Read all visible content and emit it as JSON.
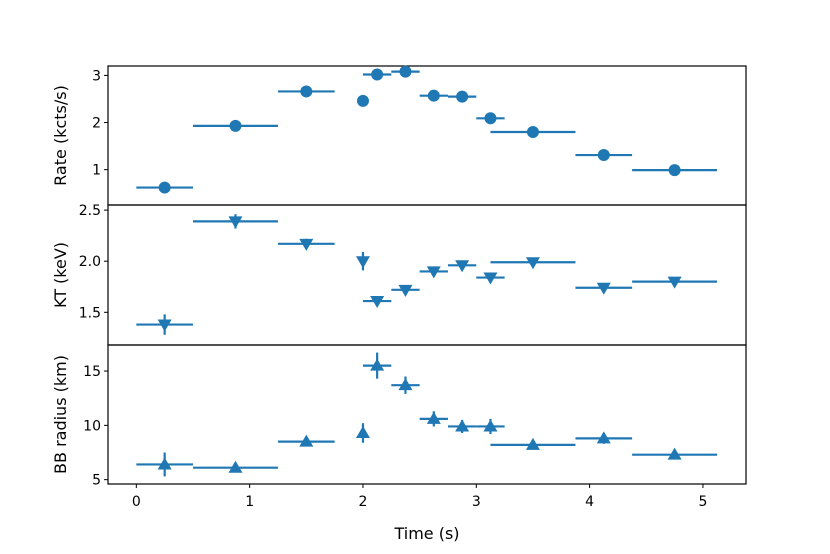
{
  "chart_data": [
    {
      "type": "scatter",
      "ylabel": "Rate (kcts/s)",
      "ylim": [
        0.25,
        3.2
      ],
      "yticks": [
        1,
        2,
        3
      ],
      "ytick_labels": [
        "1",
        "2",
        "3"
      ],
      "marker": "circle",
      "color": "#1f77b4",
      "points": [
        {
          "x": 0.25,
          "xerr": 0.25,
          "y": 0.62,
          "yerr": 0.03
        },
        {
          "x": 0.875,
          "xerr": 0.375,
          "y": 1.93,
          "yerr": 0.03
        },
        {
          "x": 1.5,
          "xerr": 0.25,
          "y": 2.66,
          "yerr": 0.03
        },
        {
          "x": 2.0,
          "xerr": 0.0,
          "y": 2.46,
          "yerr": 0.03
        },
        {
          "x": 2.125,
          "xerr": 0.125,
          "y": 3.02,
          "yerr": 0.03
        },
        {
          "x": 2.375,
          "xerr": 0.125,
          "y": 3.08,
          "yerr": 0.03
        },
        {
          "x": 2.625,
          "xerr": 0.125,
          "y": 2.57,
          "yerr": 0.03
        },
        {
          "x": 2.875,
          "xerr": 0.125,
          "y": 2.55,
          "yerr": 0.03
        },
        {
          "x": 3.125,
          "xerr": 0.125,
          "y": 2.09,
          "yerr": 0.03
        },
        {
          "x": 3.5,
          "xerr": 0.375,
          "y": 1.8,
          "yerr": 0.03
        },
        {
          "x": 4.125,
          "xerr": 0.25,
          "y": 1.31,
          "yerr": 0.03
        },
        {
          "x": 4.75,
          "xerr": 0.375,
          "y": 0.99,
          "yerr": 0.03
        }
      ]
    },
    {
      "type": "scatter",
      "ylabel": "KT (keV)",
      "ylim": [
        1.18,
        2.55
      ],
      "yticks": [
        1.5,
        2.0,
        2.5
      ],
      "ytick_labels": [
        "1.5",
        "2.0",
        "2.5"
      ],
      "marker": "triangle-down",
      "color": "#1f77b4",
      "points": [
        {
          "x": 0.25,
          "xerr": 0.25,
          "y": 1.38,
          "yerr": 0.1
        },
        {
          "x": 0.875,
          "xerr": 0.375,
          "y": 2.39,
          "yerr": 0.07
        },
        {
          "x": 1.5,
          "xerr": 0.25,
          "y": 2.17,
          "yerr": 0.05
        },
        {
          "x": 2.0,
          "xerr": 0.0,
          "y": 2.0,
          "yerr": 0.09
        },
        {
          "x": 2.125,
          "xerr": 0.125,
          "y": 1.61,
          "yerr": 0.04
        },
        {
          "x": 2.375,
          "xerr": 0.125,
          "y": 1.72,
          "yerr": 0.04
        },
        {
          "x": 2.625,
          "xerr": 0.125,
          "y": 1.9,
          "yerr": 0.04
        },
        {
          "x": 2.875,
          "xerr": 0.125,
          "y": 1.96,
          "yerr": 0.04
        },
        {
          "x": 3.125,
          "xerr": 0.125,
          "y": 1.84,
          "yerr": 0.05
        },
        {
          "x": 3.5,
          "xerr": 0.375,
          "y": 1.99,
          "yerr": 0.03
        },
        {
          "x": 4.125,
          "xerr": 0.25,
          "y": 1.74,
          "yerr": 0.03
        },
        {
          "x": 4.75,
          "xerr": 0.375,
          "y": 1.8,
          "yerr": 0.03
        }
      ]
    },
    {
      "type": "scatter",
      "xlabel": "Time (s)",
      "ylabel": "BB radius (km)",
      "ylim": [
        4.6,
        17.4
      ],
      "yticks": [
        5,
        10,
        15
      ],
      "ytick_labels": [
        "5",
        "10",
        "15"
      ],
      "xlim": [
        -0.25,
        5.38
      ],
      "xticks": [
        0,
        1,
        2,
        3,
        4,
        5
      ],
      "xtick_labels": [
        "0",
        "1",
        "2",
        "3",
        "4",
        "5"
      ],
      "marker": "triangle-up",
      "color": "#1f77b4",
      "points": [
        {
          "x": 0.25,
          "xerr": 0.25,
          "y": 6.4,
          "yerr": 1.1
        },
        {
          "x": 0.875,
          "xerr": 0.375,
          "y": 6.1,
          "yerr": 0.3
        },
        {
          "x": 1.5,
          "xerr": 0.25,
          "y": 8.5,
          "yerr": 0.3
        },
        {
          "x": 2.0,
          "xerr": 0.0,
          "y": 9.3,
          "yerr": 0.9
        },
        {
          "x": 2.125,
          "xerr": 0.125,
          "y": 15.5,
          "yerr": 1.2
        },
        {
          "x": 2.375,
          "xerr": 0.125,
          "y": 13.7,
          "yerr": 0.8
        },
        {
          "x": 2.625,
          "xerr": 0.125,
          "y": 10.6,
          "yerr": 0.7
        },
        {
          "x": 2.875,
          "xerr": 0.125,
          "y": 9.9,
          "yerr": 0.6
        },
        {
          "x": 3.125,
          "xerr": 0.125,
          "y": 9.9,
          "yerr": 0.7
        },
        {
          "x": 3.5,
          "xerr": 0.375,
          "y": 8.2,
          "yerr": 0.3
        },
        {
          "x": 4.125,
          "xerr": 0.25,
          "y": 8.8,
          "yerr": 0.5
        },
        {
          "x": 4.75,
          "xerr": 0.375,
          "y": 7.3,
          "yerr": 0.3
        }
      ]
    }
  ]
}
